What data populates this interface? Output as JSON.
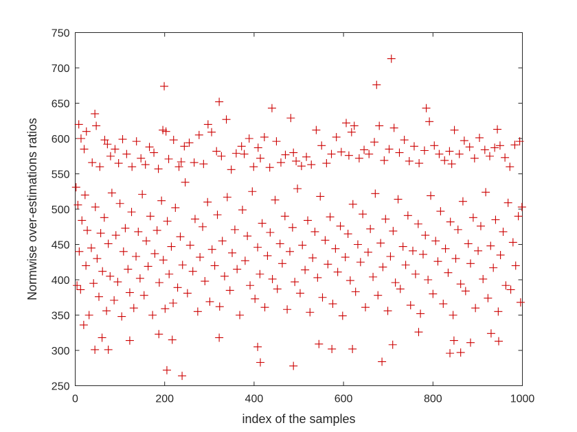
{
  "chart_data": {
    "type": "scatter",
    "title": "",
    "xlabel": "index of the samples",
    "ylabel": "Normwise over-estimations ratios",
    "xlim": [
      0,
      1000
    ],
    "ylim": [
      250,
      750
    ],
    "xticks": [
      0,
      200,
      400,
      600,
      800,
      1000
    ],
    "yticks": [
      250,
      300,
      350,
      400,
      450,
      500,
      550,
      600,
      650,
      700,
      750
    ],
    "xtick_labels": [
      "0",
      "200",
      "400",
      "600",
      "800",
      "1000"
    ],
    "ytick_labels": [
      "250",
      "300",
      "350",
      "400",
      "450",
      "500",
      "550",
      "600",
      "650",
      "700",
      "750"
    ],
    "grid": false,
    "box": true,
    "marker": "+",
    "marker_color": "#cc0000",
    "axis_color": "#262626",
    "series": [
      {
        "x": [
          2,
          4,
          6,
          9,
          12,
          15,
          19,
          22,
          24,
          27,
          31,
          36,
          41,
          45,
          49,
          53,
          57,
          61,
          65,
          70,
          74,
          78,
          82,
          87,
          91,
          95,
          100,
          104,
          108,
          112,
          118,
          122,
          126,
          131,
          136,
          141,
          145,
          150,
          154,
          159,
          163,
          168,
          173,
          178,
          183,
          188,
          193,
          197,
          201,
          206,
          210,
          215,
          219,
          224,
          229,
          235,
          240,
          246,
          251,
          257,
          263,
          268,
          274,
          279,
          285,
          290,
          296,
          301,
          306,
          312,
          318,
          323,
          329,
          334,
          340,
          346,
          351,
          357,
          362,
          368,
          374,
          380,
          385,
          391,
          396,
          402,
          408,
          413,
          418,
          424,
          430,
          436,
          441,
          447,
          452,
          458,
          463,
          469,
          474,
          480,
          486,
          491,
          497,
          503,
          508,
          514,
          520,
          525,
          531,
          536,
          542,
          548,
          553,
          559,
          565,
          570,
          576,
          582,
          587,
          593,
          598,
          604,
          610,
          615,
          621,
          627,
          632,
          638,
          643,
          649,
          655,
          660,
          666,
          671,
          677,
          683,
          688,
          694,
          699,
          705,
          711,
          716,
          722,
          727,
          733,
          739,
          744,
          750,
          755,
          761,
          767,
          772,
          778,
          783,
          789,
          795,
          800,
          806,
          811,
          817,
          823,
          828,
          834,
          839,
          845,
          851,
          856,
          862,
          867,
          873,
          879,
          884,
          890,
          895,
          901,
          907,
          912,
          918,
          923,
          929,
          935,
          940,
          946,
          951,
          957,
          963,
          968,
          974,
          979,
          985,
          991,
          996,
          999
        ],
        "y": [
          531,
          392,
          506,
          440,
          386,
          484,
          336,
          520,
          420,
          470,
          350,
          445,
          395,
          503,
          430,
          376,
          466,
          412,
          488,
          356,
          451,
          405,
          523,
          371,
          463,
          397,
          508,
          348,
          440,
          473,
          415,
          382,
          496,
          360,
          433,
          468,
          402,
          521,
          378,
          455,
          419,
          490,
          350,
          437,
          470,
          396,
          512,
          428,
          359,
          483,
          408,
          447,
          367,
          502,
          389,
          461,
          421,
          538,
          381,
          449,
          412,
          486,
          355,
          432,
          475,
          398,
          510,
          369,
          443,
          420,
          492,
          362,
          455,
          405,
          517,
          385,
          438,
          471,
          415,
          350,
          499,
          427,
          462,
          392,
          525,
          373,
          446,
          408,
          480,
          361,
          434,
          467,
          401,
          513,
          387,
          451,
          423,
          490,
          358,
          440,
          474,
          397,
          529,
          381,
          449,
          414,
          484,
          354,
          431,
          468,
          403,
          518,
          375,
          456,
          422,
          489,
          366,
          444,
          411,
          476,
          349,
          432,
          465,
          399,
          507,
          383,
          450,
          425,
          493,
          361,
          439,
          472,
          404,
          522,
          378,
          452,
          418,
          486,
          356,
          433,
          469,
          396,
          514,
          387,
          447,
          421,
          491,
          364,
          441,
          408,
          479,
          352,
          436,
          463,
          400,
          519,
          380,
          455,
          426,
          497,
          366,
          444,
          410,
          482,
          350,
          430,
          471,
          394,
          511,
          384,
          451,
          423,
          488,
          360,
          441,
          476,
          401,
          524,
          374,
          448,
          417,
          485,
          355,
          435,
          468,
          392,
          509,
          386,
          453,
          420,
          490,
          368,
          503
        ]
      },
      {
        "x": [
          8,
          13,
          20,
          25,
          38,
          44,
          47,
          55,
          66,
          72,
          79,
          89,
          97,
          106,
          115,
          127,
          137,
          147,
          157,
          166,
          176,
          186,
          196,
          199,
          203,
          209,
          220,
          232,
          237,
          244,
          255,
          266,
          277,
          287,
          297,
          305,
          316,
          322,
          327,
          338,
          349,
          360,
          372,
          378,
          389,
          399,
          409,
          414,
          423,
          435,
          440,
          450,
          460,
          470,
          482,
          488,
          494,
          506,
          517,
          528,
          539,
          551,
          562,
          573,
          584,
          595,
          606,
          612,
          618,
          624,
          635,
          646,
          657,
          669,
          674,
          680,
          691,
          702,
          707,
          713,
          725,
          736,
          747,
          758,
          769,
          781,
          785,
          792,
          803,
          814,
          826,
          837,
          842,
          848,
          859,
          870,
          882,
          893,
          904,
          916,
          927,
          938,
          944,
          950,
          961,
          972,
          983,
          994
        ],
        "y": [
          620,
          600,
          585,
          610,
          566,
          635,
          618,
          560,
          598,
          592,
          575,
          585,
          565,
          599,
          578,
          560,
          596,
          572,
          563,
          588,
          580,
          557,
          612,
          674,
          610,
          571,
          598,
          560,
          567,
          589,
          594,
          566,
          605,
          564,
          620,
          609,
          582,
          652,
          575,
          627,
          556,
          579,
          589,
          578,
          600,
          560,
          587,
          572,
          602,
          559,
          643,
          596,
          566,
          577,
          629,
          580,
          568,
          561,
          574,
          563,
          612,
          590,
          565,
          578,
          602,
          581,
          622,
          576,
          609,
          618,
          572,
          584,
          578,
          595,
          676,
          618,
          569,
          585,
          713,
          615,
          580,
          598,
          568,
          589,
          565,
          583,
          643,
          624,
          590,
          578,
          569,
          582,
          564,
          612,
          578,
          597,
          588,
          572,
          601,
          584,
          575,
          587,
          613,
          590,
          573,
          560,
          591,
          596
        ],
        "hidden_low": false
      },
      {
        "x": [
          44,
          60,
          74,
          122,
          187,
          205,
          217,
          239,
          322,
          408,
          414,
          488,
          545,
          574,
          620,
          686,
          710,
          768,
          838,
          847,
          862,
          884,
          930,
          947
        ],
        "y": [
          301,
          318,
          301,
          314,
          323,
          272,
          315,
          264,
          318,
          305,
          283,
          278,
          309,
          302,
          302,
          284,
          308,
          326,
          296,
          314,
          297,
          311,
          324,
          313
        ]
      }
    ]
  }
}
